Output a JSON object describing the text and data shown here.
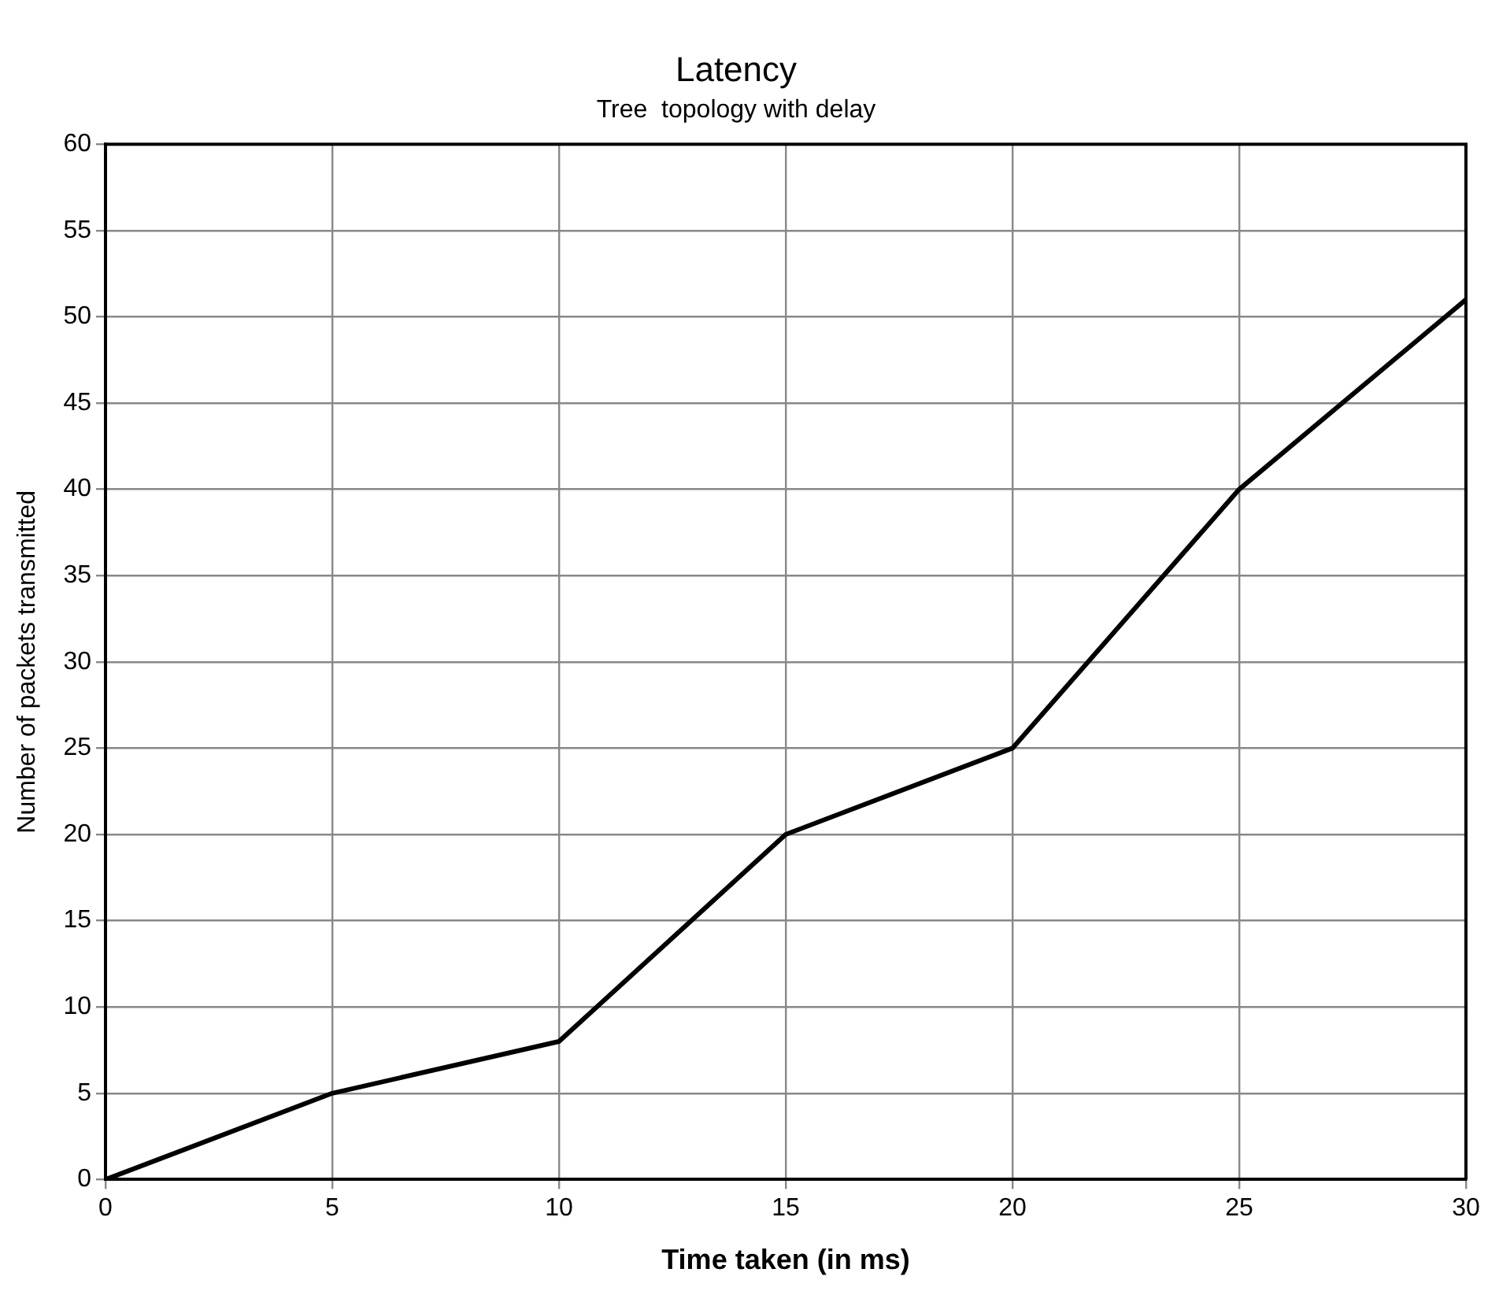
{
  "chart_data": {
    "type": "line",
    "title": "Latency",
    "subtitle": "Tree  topology with delay",
    "xlabel": "Time taken (in ms)",
    "ylabel": "Number of packets transmitted",
    "x": [
      0,
      5,
      10,
      15,
      20,
      25,
      30
    ],
    "series": [
      {
        "color": "#000000",
        "values": [
          0,
          5,
          8,
          20,
          25,
          40,
          51
        ]
      }
    ],
    "xlim": [
      0,
      30
    ],
    "xticks": [
      0,
      5,
      10,
      15,
      20,
      25,
      30
    ],
    "ylim": [
      0,
      60
    ],
    "yticks": [
      0,
      5,
      10,
      15,
      20,
      25,
      30,
      35,
      40,
      45,
      50,
      55,
      60
    ],
    "grid": true,
    "legend": false,
    "marker": "none",
    "line_style": "solid"
  }
}
